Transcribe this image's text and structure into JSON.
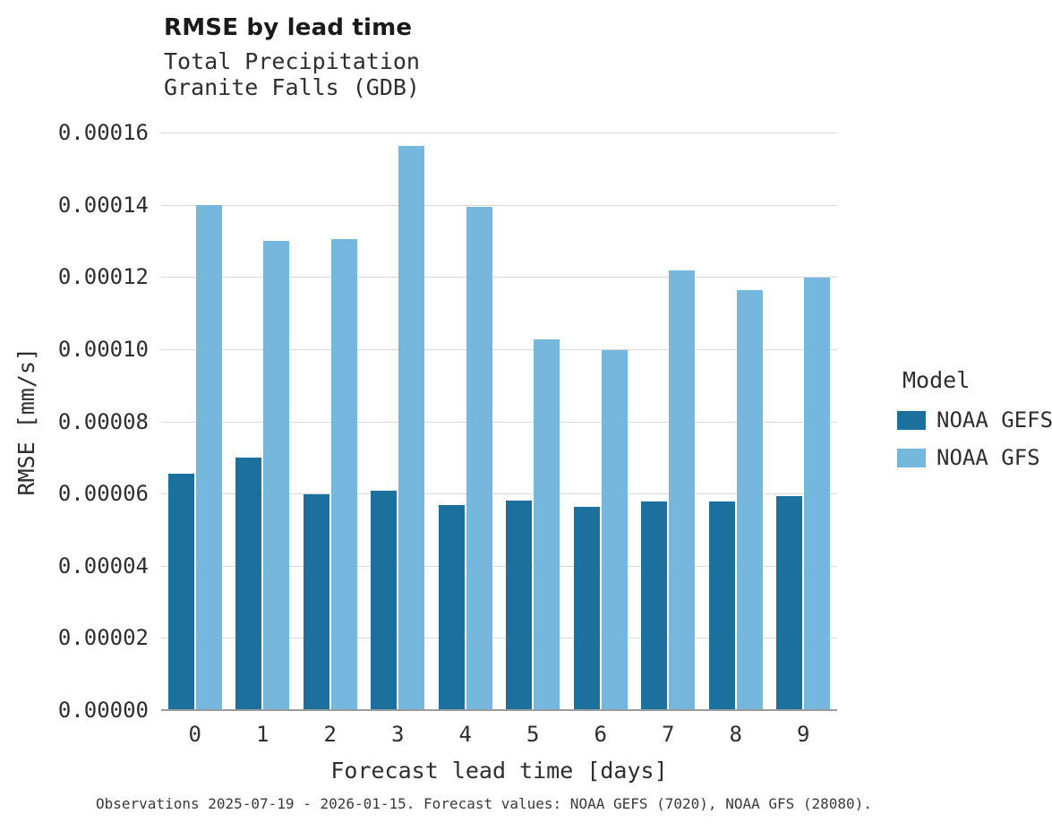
{
  "chart_data": {
    "type": "bar",
    "title": "RMSE by lead time",
    "subtitle1": "Total Precipitation",
    "subtitle2": "Granite Falls (GDB)",
    "xlabel": "Forecast lead time [days]",
    "ylabel": "RMSE [mm/s]",
    "legend_title": "Model",
    "legend_position": "right",
    "grid": true,
    "categories": [
      "0",
      "1",
      "2",
      "3",
      "4",
      "5",
      "6",
      "7",
      "8",
      "9"
    ],
    "series": [
      {
        "name": "NOAA GEFS",
        "color": "#1b709d",
        "values": [
          6.55e-05,
          7e-05,
          5.97e-05,
          6.08e-05,
          5.67e-05,
          5.8e-05,
          5.62e-05,
          5.77e-05,
          5.79e-05,
          5.92e-05
        ]
      },
      {
        "name": "NOAA GFS",
        "color": "#76b7de",
        "values": [
          0.00014,
          0.0001299,
          0.0001306,
          0.0001564,
          0.0001393,
          0.0001028,
          9.98e-05,
          0.0001218,
          0.0001163,
          0.0001197
        ]
      }
    ],
    "ylim": [
      0,
      0.00016
    ],
    "yticks": [
      "0.00000",
      "0.00002",
      "0.00004",
      "0.00006",
      "0.00008",
      "0.00010",
      "0.00012",
      "0.00014",
      "0.00016"
    ]
  },
  "caption": "Observations 2025-07-19 - 2026-01-15. Forecast values: NOAA GEFS (7020), NOAA GFS (28080)."
}
